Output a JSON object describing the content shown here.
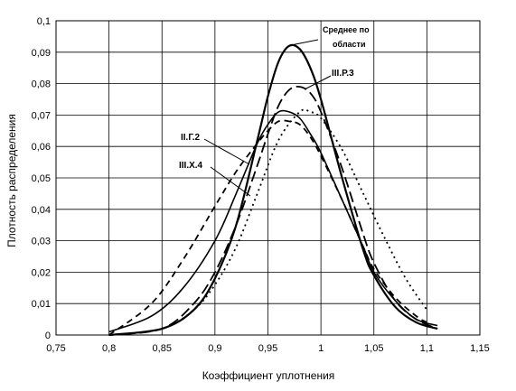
{
  "chart_data": {
    "type": "line",
    "xlabel": "Коэффициент уплотнения",
    "ylabel": "Плотность распределения",
    "xlim": [
      0.75,
      1.15
    ],
    "ylim": [
      0,
      0.1
    ],
    "grid": true,
    "xticks": [
      0.75,
      0.8,
      0.85,
      0.9,
      0.95,
      1.0,
      1.05,
      1.1,
      1.15
    ],
    "yticks": [
      0,
      0.01,
      0.02,
      0.03,
      0.04,
      0.05,
      0.06,
      0.07,
      0.08,
      0.09,
      0.1
    ],
    "xtick_labels": [
      "0,75",
      "0,8",
      "0,85",
      "0,9",
      "0,95",
      "1",
      "1,05",
      "1,1",
      "1,15"
    ],
    "ytick_labels": [
      "0",
      "0,01",
      "0,02",
      "0,03",
      "0,04",
      "0,05",
      "0,06",
      "0,07",
      "0,08",
      "0,09",
      "0,1"
    ],
    "series": [
      {
        "name": "Среднее по области",
        "style": "solid-thick",
        "x": [
          0.8,
          0.85,
          0.88,
          0.9,
          0.92,
          0.94,
          0.95,
          0.96,
          0.97,
          0.98,
          0.99,
          1.0,
          1.02,
          1.04,
          1.05,
          1.07,
          1.09,
          1.11
        ],
        "y": [
          0.0,
          0.002,
          0.008,
          0.018,
          0.035,
          0.062,
          0.076,
          0.087,
          0.092,
          0.091,
          0.085,
          0.075,
          0.05,
          0.027,
          0.019,
          0.009,
          0.004,
          0.002
        ]
      },
      {
        "name": "III.Р.3",
        "style": "long-dash",
        "x": [
          0.8,
          0.85,
          0.88,
          0.9,
          0.92,
          0.94,
          0.95,
          0.96,
          0.97,
          0.98,
          0.99,
          1.0,
          1.02,
          1.04,
          1.05,
          1.07,
          1.09,
          1.11
        ],
        "y": [
          0.0,
          0.002,
          0.01,
          0.02,
          0.035,
          0.054,
          0.064,
          0.073,
          0.078,
          0.079,
          0.077,
          0.071,
          0.053,
          0.032,
          0.023,
          0.011,
          0.005,
          0.002
        ]
      },
      {
        "name": "II.Г.2",
        "style": "solid",
        "x": [
          0.8,
          0.84,
          0.87,
          0.9,
          0.92,
          0.94,
          0.95,
          0.96,
          0.97,
          0.98,
          0.99,
          1.0,
          1.02,
          1.04,
          1.05,
          1.07,
          1.09,
          1.11
        ],
        "y": [
          0.001,
          0.006,
          0.015,
          0.03,
          0.045,
          0.061,
          0.067,
          0.071,
          0.071,
          0.069,
          0.064,
          0.058,
          0.043,
          0.028,
          0.02,
          0.011,
          0.005,
          0.003
        ]
      },
      {
        "name": "III.Х.4",
        "style": "dash",
        "x": [
          0.8,
          0.84,
          0.87,
          0.9,
          0.92,
          0.94,
          0.95,
          0.96,
          0.97,
          0.98,
          0.99,
          1.0,
          1.02,
          1.04,
          1.05,
          1.07,
          1.09,
          1.1
        ],
        "y": [
          0.0,
          0.01,
          0.024,
          0.041,
          0.052,
          0.061,
          0.065,
          0.068,
          0.068,
          0.067,
          0.063,
          0.057,
          0.043,
          0.028,
          0.021,
          0.012,
          0.006,
          0.004
        ]
      },
      {
        "name": "",
        "style": "dotted",
        "x": [
          0.8,
          0.85,
          0.88,
          0.9,
          0.92,
          0.94,
          0.96,
          0.98,
          0.99,
          1.0,
          1.02,
          1.04,
          1.06,
          1.08,
          1.1
        ],
        "y": [
          0.0,
          0.002,
          0.008,
          0.016,
          0.028,
          0.045,
          0.062,
          0.071,
          0.071,
          0.069,
          0.059,
          0.045,
          0.031,
          0.018,
          0.008
        ]
      }
    ],
    "annotations": [
      {
        "text": "Среднее по",
        "series": "Среднее по области"
      },
      {
        "text": "области",
        "series": "Среднее по области"
      },
      {
        "text": "III.Р.3",
        "series": "III.Р.3"
      },
      {
        "text": "II.Г.2",
        "series": "II.Г.2"
      },
      {
        "text": "III.Х.4",
        "series": "III.Х.4"
      }
    ]
  }
}
